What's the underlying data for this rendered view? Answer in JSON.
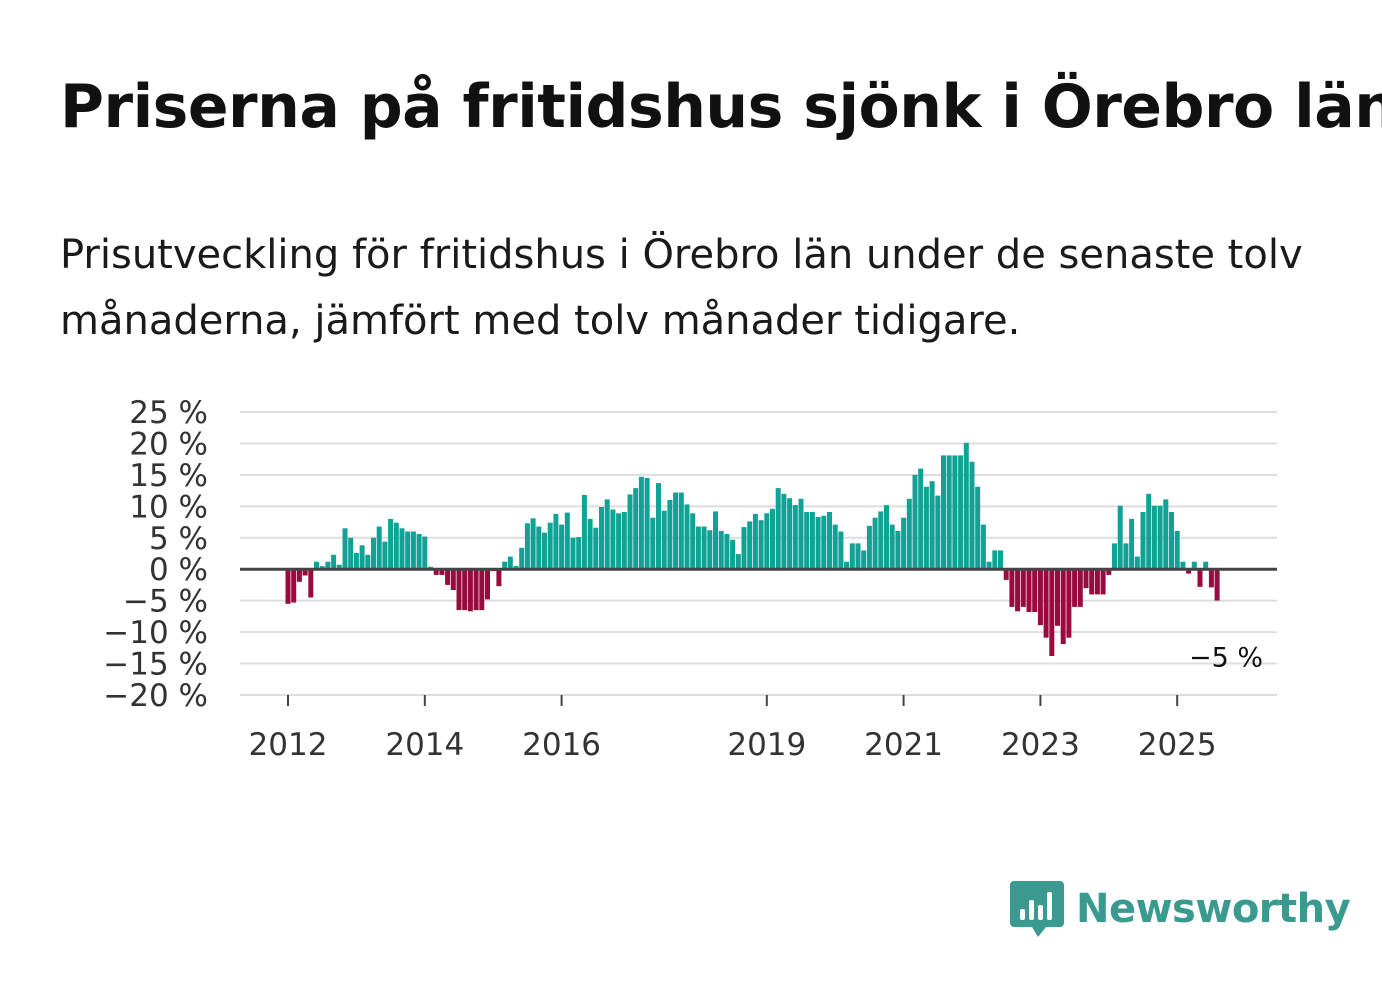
{
  "header": {
    "title": "Priserna på fritidshus sjönk i Örebro län",
    "subtitle": "Prisutveckling för fritidshus i Örebro län under de senaste tolv månaderna, jämfört med tolv månader tidigare."
  },
  "brand": {
    "name": "Newsworthy",
    "logo_icon": "bar-chart-speech-bubble-icon",
    "color": "#3a9a90"
  },
  "colors": {
    "positive": "#11a296",
    "negative": "#990a3e",
    "grid": "#dddddd",
    "zero_line": "#444444"
  },
  "chart_data": {
    "type": "bar",
    "title": "Priserna på fritidshus sjönk i Örebro län",
    "xlabel": "",
    "ylabel": "",
    "ylim": [
      -20,
      25
    ],
    "yticks": [
      25,
      20,
      15,
      10,
      5,
      0,
      -5,
      -10,
      -15,
      -20
    ],
    "ytick_labels": [
      "25 %",
      "20 %",
      "15 %",
      "10 %",
      "5 %",
      "0 %",
      "−5 %",
      "−10 %",
      "−15 %",
      "−20 %"
    ],
    "xticks": [
      {
        "label": "2012",
        "index": 0
      },
      {
        "label": "2014",
        "index": 24
      },
      {
        "label": "2016",
        "index": 48
      },
      {
        "label": "2019",
        "index": 84
      },
      {
        "label": "2021",
        "index": 108
      },
      {
        "label": "2023",
        "index": 132
      },
      {
        "label": "2025",
        "index": 156
      }
    ],
    "start": "2012-01",
    "annotation": {
      "label": "−5 %",
      "value": -5
    },
    "values": [
      -5.5,
      -5.3,
      -2.0,
      -1.0,
      -4.5,
      1.2,
      0.5,
      1.2,
      2.3,
      0.7,
      6.5,
      5.0,
      2.6,
      3.8,
      2.3,
      5.0,
      6.8,
      4.4,
      8.0,
      7.4,
      6.5,
      6.0,
      6.0,
      5.6,
      5.2,
      0.4,
      -0.9,
      -0.9,
      -2.5,
      -3.3,
      -6.5,
      -6.5,
      -6.7,
      -6.5,
      -6.5,
      -4.8,
      -0.3,
      -2.7,
      1.2,
      2.0,
      0.5,
      3.4,
      7.3,
      8.1,
      6.8,
      5.8,
      7.4,
      8.8,
      7.1,
      9.0,
      5.0,
      5.1,
      11.8,
      8.0,
      6.6,
      9.9,
      11.1,
      9.5,
      8.9,
      9.1,
      11.9,
      12.9,
      14.7,
      14.5,
      8.2,
      13.7,
      9.3,
      11.0,
      12.2,
      12.2,
      10.3,
      8.9,
      6.8,
      6.8,
      6.2,
      9.2,
      6.1,
      5.6,
      4.7,
      2.4,
      6.7,
      7.6,
      8.8,
      7.8,
      8.9,
      9.6,
      12.9,
      12.0,
      11.3,
      10.2,
      11.2,
      9.1,
      9.1,
      8.3,
      8.5,
      9.1,
      7.1,
      6.0,
      1.2,
      4.1,
      4.1,
      3.0,
      6.9,
      8.2,
      9.2,
      10.2,
      7.1,
      6.1,
      8.2,
      11.2,
      15.0,
      16.0,
      13.1,
      14.0,
      11.7,
      18.1,
      18.1,
      18.1,
      18.1,
      20.1,
      17.1,
      13.1,
      7.1,
      1.2,
      3.0,
      3.0,
      -1.7,
      -6.0,
      -6.7,
      -6.0,
      -6.8,
      -6.8,
      -8.9,
      -10.9,
      -13.8,
      -9.0,
      -11.9,
      -10.9,
      -6.0,
      -6.0,
      -3.0,
      -4.0,
      -4.0,
      -4.0,
      -0.9,
      4.1,
      10.1,
      4.1,
      8.0,
      2.0,
      9.1,
      12.0,
      10.1,
      10.1,
      11.1,
      9.1,
      6.1,
      1.2,
      -0.7,
      1.2,
      -2.8,
      1.2,
      -2.9,
      -5.0
    ]
  }
}
